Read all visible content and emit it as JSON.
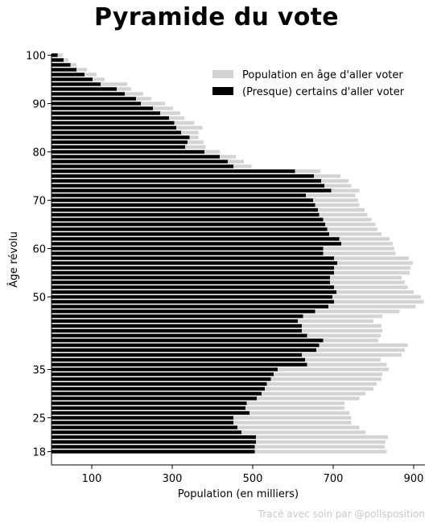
{
  "chart_data": {
    "type": "bar",
    "orientation": "horizontal",
    "title": "Pyramide du vote",
    "xlabel": "Population (en milliers)",
    "ylabel": "Âge révolu",
    "xlim": [
      0,
      930
    ],
    "ylim": [
      18,
      100
    ],
    "xticks": [
      "100",
      "300",
      "500",
      "700",
      "900"
    ],
    "yticks": [
      "18",
      "25",
      "35",
      "50",
      "60",
      "70",
      "80",
      "90",
      "100"
    ],
    "ages": [
      18,
      19,
      20,
      21,
      22,
      23,
      24,
      25,
      26,
      27,
      28,
      29,
      30,
      31,
      32,
      33,
      34,
      35,
      36,
      37,
      38,
      39,
      40,
      41,
      42,
      43,
      44,
      45,
      46,
      47,
      48,
      49,
      50,
      51,
      52,
      53,
      54,
      55,
      56,
      57,
      58,
      59,
      60,
      61,
      62,
      63,
      64,
      65,
      66,
      67,
      68,
      69,
      70,
      71,
      72,
      73,
      74,
      75,
      76,
      77,
      78,
      79,
      80,
      81,
      82,
      83,
      84,
      85,
      86,
      87,
      88,
      89,
      90,
      91,
      92,
      93,
      94,
      95,
      96,
      97,
      98,
      99,
      100
    ],
    "series": [
      {
        "name": "Population en âge d'aller voter",
        "color": "#d3d3d3",
        "values": [
          833,
          828,
          830,
          836,
          780,
          765,
          745,
          745,
          740,
          728,
          728,
          765,
          780,
          800,
          808,
          820,
          822,
          838,
          833,
          818,
          870,
          878,
          885,
          812,
          818,
          822,
          820,
          800,
          822,
          865,
          905,
          925,
          918,
          900,
          885,
          878,
          870,
          890,
          892,
          898,
          888,
          855,
          852,
          848,
          840,
          820,
          810,
          805,
          795,
          785,
          778,
          765,
          762,
          755,
          765,
          745,
          738,
          718,
          668,
          497,
          478,
          458,
          418,
          383,
          378,
          365,
          365,
          375,
          355,
          330,
          320,
          302,
          282,
          248,
          228,
          198,
          188,
          132,
          112,
          88,
          62,
          42,
          28,
          18,
          12
        ]
      },
      {
        "name": "(Presque) certains d'aller voter",
        "color": "#000000",
        "values": [
          505,
          505,
          508,
          508,
          472,
          462,
          452,
          452,
          492,
          482,
          485,
          510,
          522,
          530,
          535,
          545,
          552,
          562,
          635,
          630,
          622,
          658,
          665,
          675,
          635,
          622,
          622,
          612,
          625,
          655,
          688,
          702,
          698,
          708,
          702,
          692,
          692,
          702,
          702,
          710,
          702,
          675,
          675,
          720,
          715,
          690,
          685,
          680,
          675,
          665,
          662,
          655,
          650,
          632,
          695,
          678,
          670,
          652,
          605,
          452,
          438,
          418,
          380,
          332,
          338,
          343,
          322,
          310,
          305,
          292,
          270,
          252,
          222,
          210,
          182,
          162,
          122,
          102,
          82,
          62,
          47,
          30,
          15
        ]
      }
    ],
    "legend_position": "top-right",
    "grid": false
  },
  "footer": {
    "credit": "Tracé avec soin par @pollsposition"
  }
}
